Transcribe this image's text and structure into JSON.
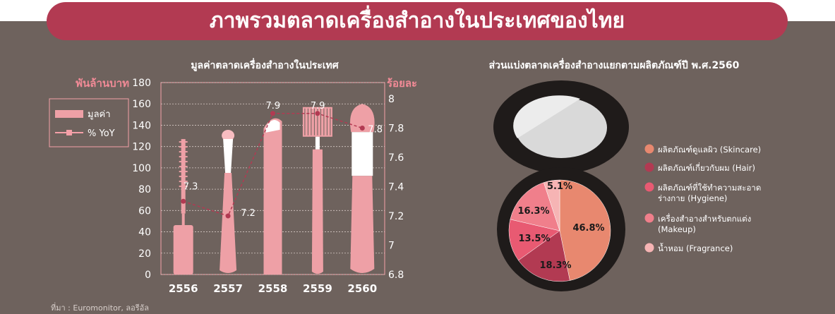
{
  "title": "ภาพรวมตลาดเครื่องสำอางในประเทศของไทย",
  "source": "ที่มา : Euromonitor, ลอรีอัล",
  "colors": {
    "background": "#6e625d",
    "title_bg": "#b23a52",
    "bar_pink": "#eea0a6",
    "line": "#b23a52",
    "skincare": "#e8886f",
    "hair": "#b23a52",
    "hygiene": "#e85a72",
    "makeup": "#f07f8b",
    "fragrance": "#f6b4b4"
  },
  "chart_data": [
    {
      "type": "bar",
      "title": "มูลค่าตลาดเครื่องสำอางในประเทศ",
      "categories": [
        "2556",
        "2557",
        "2558",
        "2559",
        "2560"
      ],
      "ylabel": "พันล้านบาท",
      "ylabel_right": "ร้อยละ",
      "ylim": [
        0,
        180
      ],
      "yticks": [
        "0",
        "20",
        "40",
        "60",
        "80",
        "100",
        "120",
        "140",
        "160",
        "180"
      ],
      "ylim_right": [
        6.8,
        8
      ],
      "yticks_right": [
        "6.8",
        "7",
        "7.2",
        "7.4",
        "7.6",
        "7.8",
        "8"
      ],
      "grid": true,
      "legend_position": "left",
      "series": [
        {
          "name": "มูลค่า",
          "type": "bar",
          "axis": "left",
          "values": [
            127,
            135,
            149,
            157,
            160
          ]
        },
        {
          "name": "% YoY",
          "type": "line",
          "axis": "right",
          "values": [
            7.3,
            7.2,
            7.9,
            7.9,
            7.8
          ],
          "labels": [
            "7.3",
            "7.2",
            "7.9",
            "7.9",
            "7.8"
          ]
        }
      ]
    },
    {
      "type": "pie",
      "title": "ส่วนแบ่งตลาดเครื่องสำอางแยกตามผลิตภัณฑ์ปี พ.ศ.2560",
      "legend_position": "right",
      "slices": [
        {
          "name": "ผลิตภัณฑ์ดูแลผิว (Skincare)",
          "value": 46.8,
          "label": "46.8%",
          "color": "#e8886f"
        },
        {
          "name": "ผลิตภัณฑ์เกี่ยวกับผม (Hair)",
          "value": 18.3,
          "label": "18.3%",
          "color": "#b23a52"
        },
        {
          "name": "ผลิตภัณฑ์ที่ใช้ทำความสะอาดร่างกาย (Hygiene)",
          "value": 13.5,
          "label": "13.5%",
          "color": "#e85a72"
        },
        {
          "name": "เครื่องสำอางสำหรับตกแต่ง (Makeup)",
          "value": 16.3,
          "label": "16.3%",
          "color": "#f07f8b"
        },
        {
          "name": "น้ำหอม (Fragrance)",
          "value": 5.1,
          "label": "5.1%",
          "color": "#f6b4b4"
        }
      ],
      "legend_labels": [
        [
          "ผลิตภัณฑ์ดูแลผิว (Skincare)"
        ],
        [
          "ผลิตภัณฑ์เกี่ยวกับผม (Hair)"
        ],
        [
          "ผลิตภัณฑ์ที่ใช้ทำความสะอาด",
          "ร่างกาย (Hygiene)"
        ],
        [
          "เครื่องสำอางสำหรับตกแต่ง",
          "(Makeup)"
        ],
        [
          "น้ำหอม (Fragrance)"
        ]
      ]
    }
  ]
}
